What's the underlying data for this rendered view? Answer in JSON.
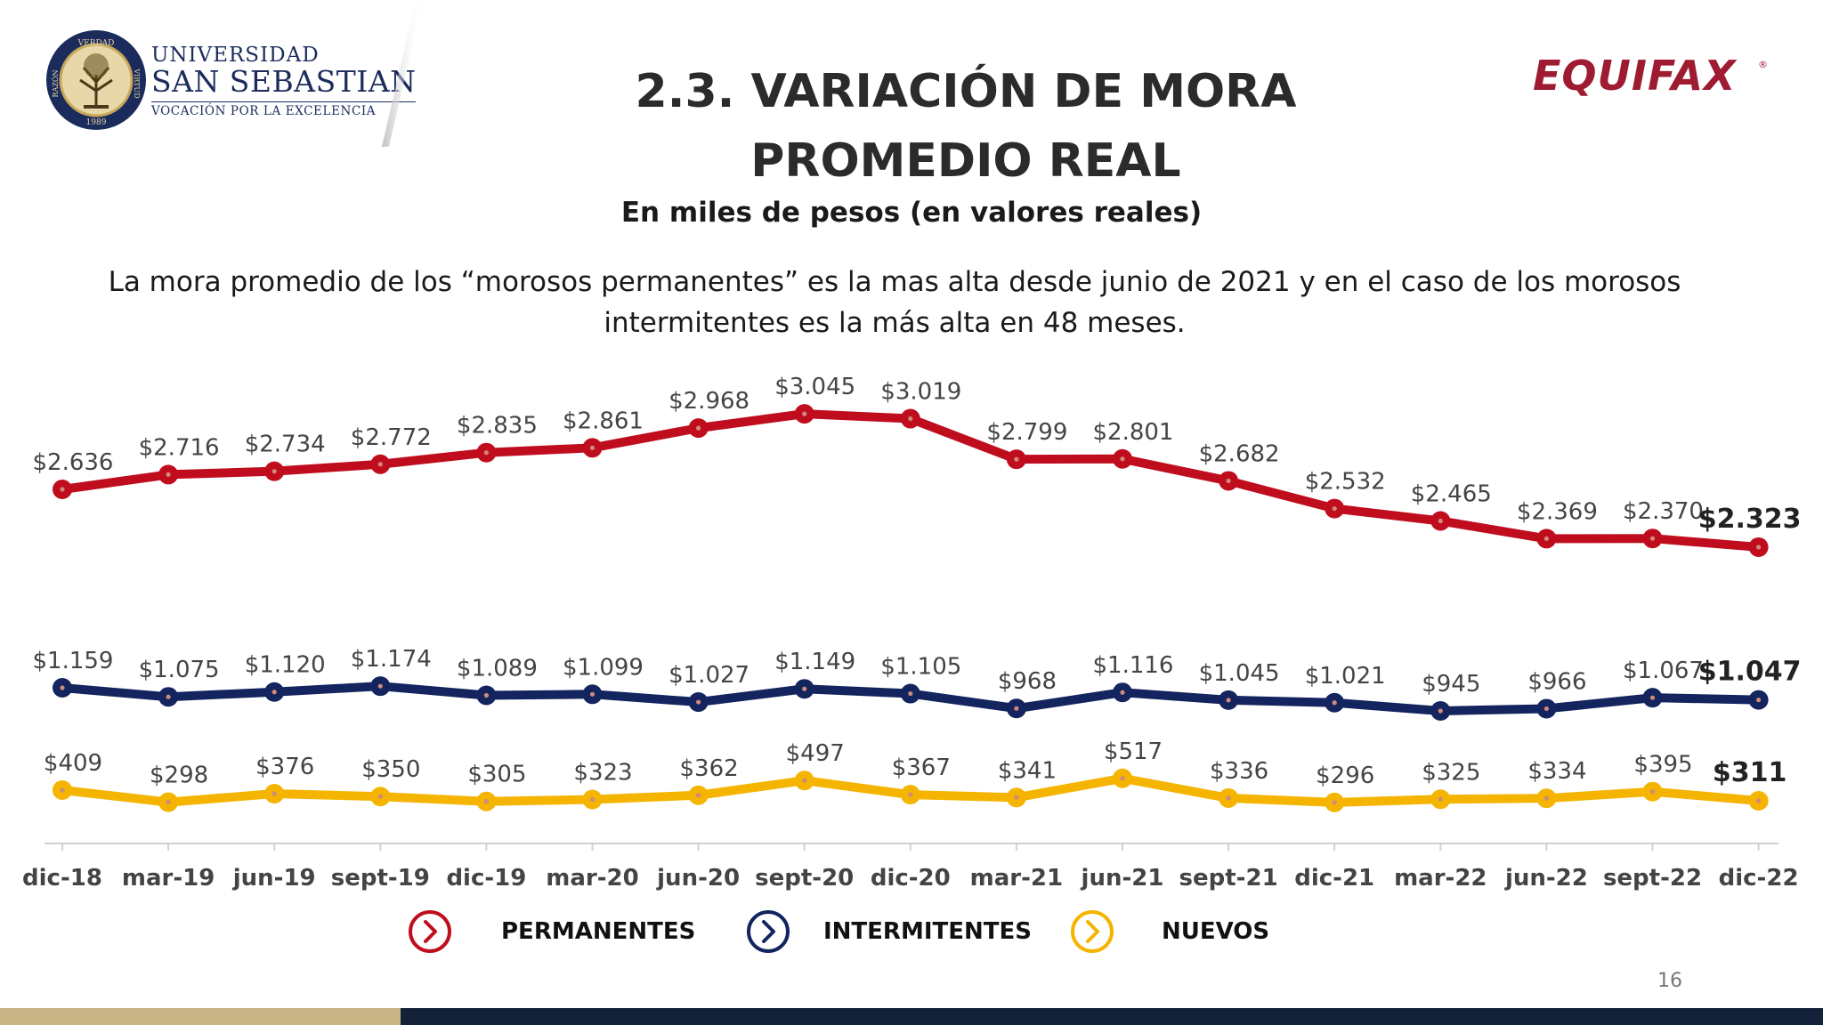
{
  "header": {
    "title": "2.3. VARIACIÓN DE MORA PROMEDIO REAL",
    "subtitle": "En miles de pesos (en valores reales)",
    "note": "La mora promedio de los “morosos permanentes” es la mas alta desde junio de 2021 y en el caso de los morosos intermitentes es la más alta en 48 meses.",
    "page_number": "16"
  },
  "logo_usm": {
    "line1": "UNIVERSIDAD",
    "line2": "SAN SEBASTIAN",
    "line3": "VOCACIÓN POR LA EXCELENCIA",
    "seal_top": "VERDAD",
    "seal_left": "RAZÓN",
    "seal_right": "VIRTUD",
    "seal_year": "1989"
  },
  "logo_equifax": {
    "text": "EQUIFAX",
    "mark": "®"
  },
  "colors": {
    "permanentes": "#c00d1e",
    "intermitentes": "#13245e",
    "nuevos": "#f4b400",
    "marker_dot": "#d08a7a"
  },
  "chart_data": {
    "type": "line",
    "x": [
      "dic-18",
      "mar-19",
      "jun-19",
      "sept-19",
      "dic-19",
      "mar-20",
      "jun-20",
      "sept-20",
      "dic-20",
      "mar-21",
      "jun-21",
      "sept-21",
      "dic-21",
      "mar-22",
      "jun-22",
      "sept-22",
      "dic-22"
    ],
    "series": [
      {
        "name": "PERMANENTES",
        "values": [
          2636,
          2716,
          2734,
          2772,
          2835,
          2861,
          2968,
          3045,
          3019,
          2799,
          2801,
          2682,
          2532,
          2465,
          2369,
          2370,
          2323
        ],
        "labels": [
          "$2.636",
          "$2.716",
          "$2.734",
          "$2.772",
          "$2.835",
          "$2.861",
          "$2.968",
          "$3.045",
          "$3.019",
          "$2.799",
          "$2.801",
          "$2.682",
          "$2.532",
          "$2.465",
          "$2.369",
          "$2.370",
          "$2.323"
        ]
      },
      {
        "name": "INTERMITENTES",
        "values": [
          1159,
          1075,
          1120,
          1174,
          1089,
          1099,
          1027,
          1149,
          1105,
          968,
          1116,
          1045,
          1021,
          945,
          966,
          1067,
          1047
        ],
        "labels": [
          "$1.159",
          "$1.075",
          "$1.120",
          "$1.174",
          "$1.089",
          "$1.099",
          "$1.027",
          "$1.149",
          "$1.105",
          "$968",
          "$1.116",
          "$1.045",
          "$1.021",
          "$945",
          "$966",
          "$1.067",
          "$1.047"
        ]
      },
      {
        "name": "NUEVOS",
        "values": [
          409,
          298,
          376,
          350,
          305,
          323,
          362,
          497,
          367,
          341,
          517,
          336,
          296,
          325,
          334,
          395,
          311
        ],
        "labels": [
          "$409",
          "$298",
          "$376",
          "$350",
          "$305",
          "$323",
          "$362",
          "$497",
          "$367",
          "$341",
          "$517",
          "$336",
          "$296",
          "$325",
          "$334",
          "$395",
          "$311"
        ]
      }
    ],
    "legend_position": "bottom",
    "grid": false
  }
}
